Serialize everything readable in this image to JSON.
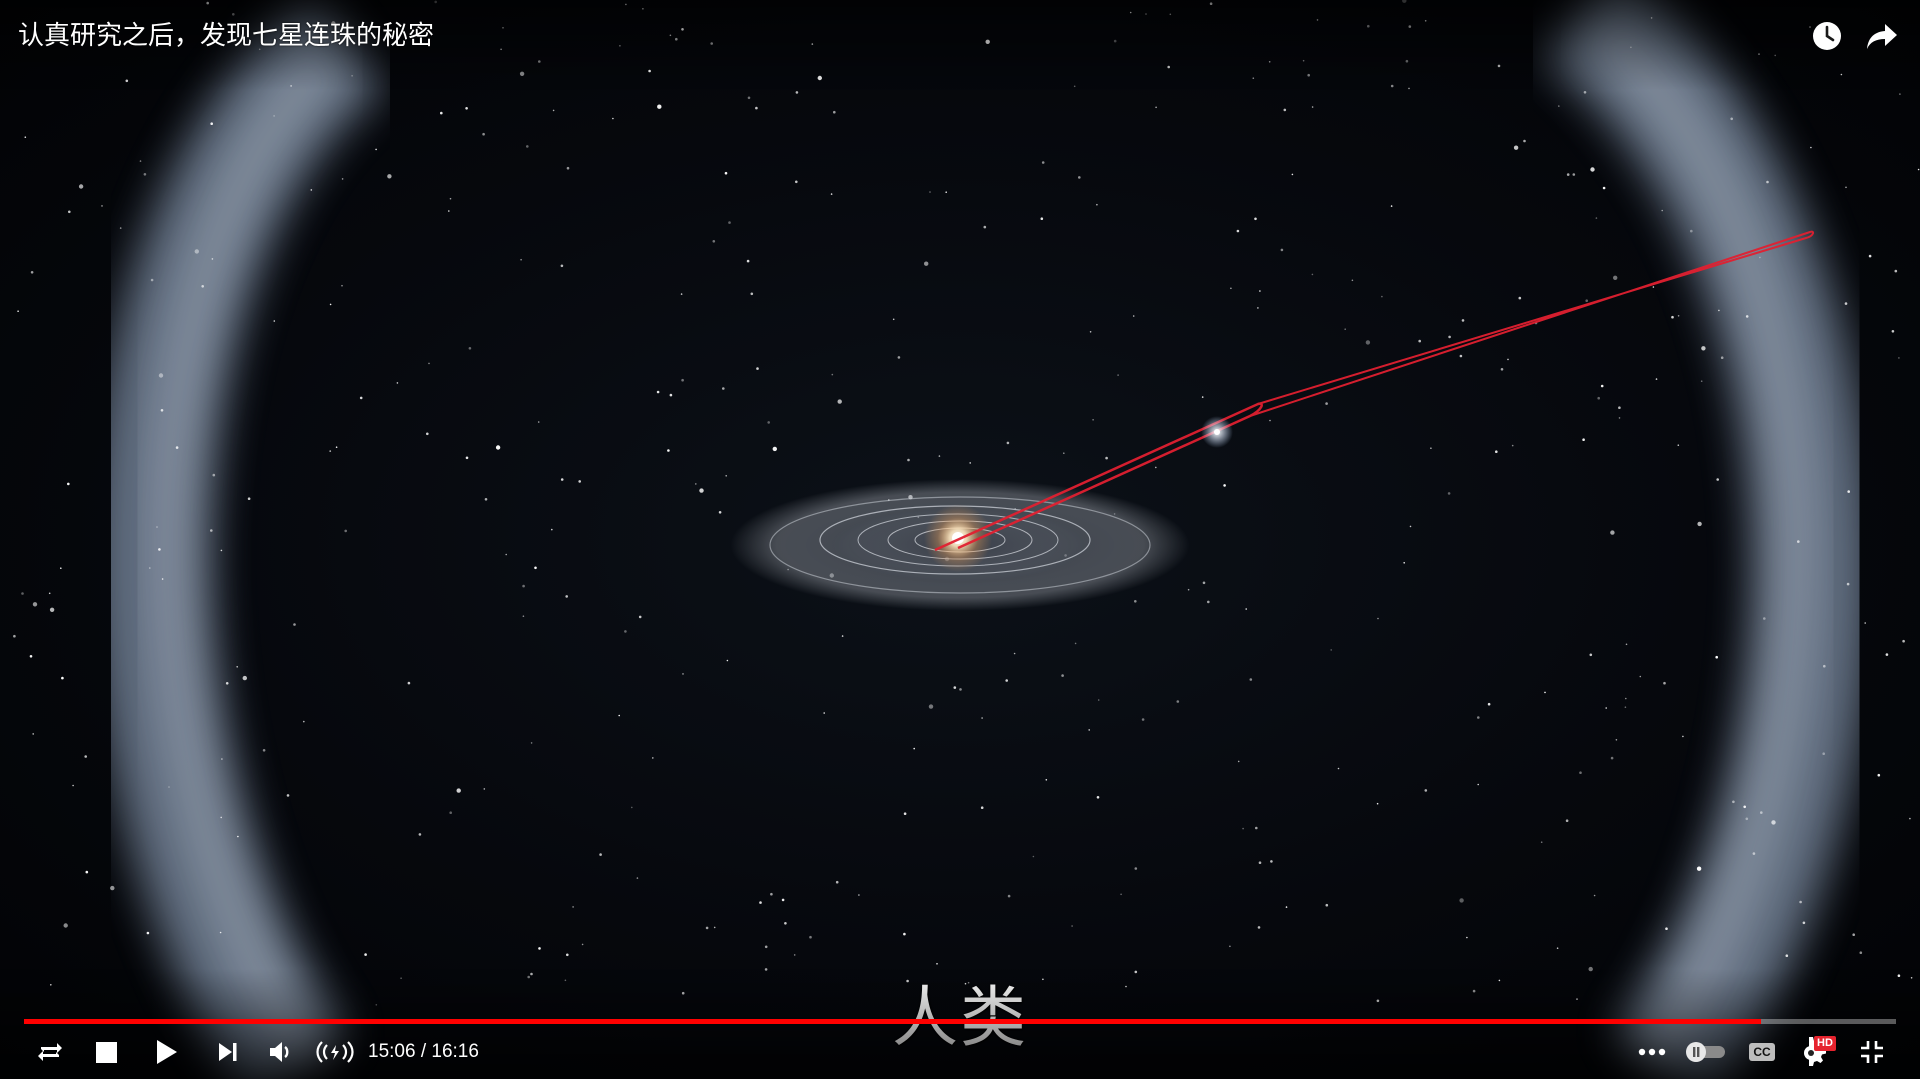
{
  "header": {
    "title": "认真研究之后，发现七星连珠的秘密",
    "watch_later_icon": "clock-icon",
    "share_icon": "share-arrow-icon"
  },
  "subtitle": {
    "text": "人类"
  },
  "progress": {
    "current_time": "15:06",
    "separator": " / ",
    "duration": "16:16",
    "played_fraction": 0.928,
    "color": "#ff0000"
  },
  "controls": {
    "left": [
      "loop-icon",
      "stop-icon",
      "play-icon",
      "next-icon",
      "volume-icon",
      "live-broadcast-icon"
    ],
    "right": [
      "more-icon",
      "autoplay-toggle",
      "closed-captions-icon",
      "settings-hd-icon",
      "exit-fullscreen-icon"
    ],
    "cc_label": "CC",
    "hd_badge": "HD"
  }
}
